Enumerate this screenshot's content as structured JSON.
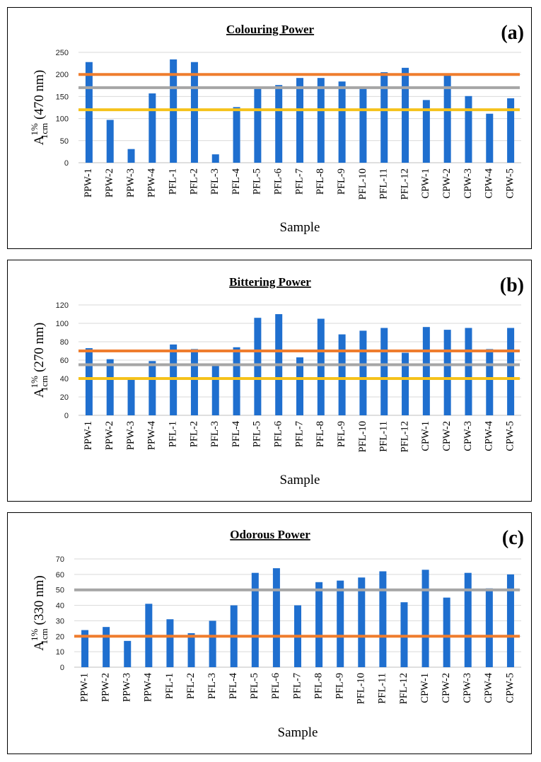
{
  "chart_data": [
    {
      "type": "bar",
      "panel_label": "(a)",
      "title": "Colouring Power",
      "xlabel": "Sample",
      "ylabel": {
        "base": "A",
        "sup": "1%",
        "sub": "1cm",
        "rest": " (470 nm)"
      },
      "ylim": [
        0,
        250
      ],
      "yticks": [
        0,
        50,
        100,
        150,
        200,
        250
      ],
      "grid": true,
      "categories": [
        "PPW-1",
        "PPW-2",
        "PPW-3",
        "PPW-4",
        "PFL-1",
        "PFL-2",
        "PFL-3",
        "PFL-4",
        "PFL-5",
        "PFL-6",
        "PFL-7",
        "PFL-8",
        "PFL-9",
        "PFL-10",
        "PFL-11",
        "PFL-12",
        "CPW-1",
        "CPW-2",
        "CPW-3",
        "CPW-4",
        "CPW-5"
      ],
      "values": [
        228,
        97,
        31,
        157,
        234,
        228,
        19,
        126,
        168,
        176,
        192,
        192,
        184,
        168,
        205,
        215,
        142,
        198,
        151,
        111,
        146
      ],
      "bar_color": "#1f6fcf",
      "reference_lines": [
        {
          "value": 200,
          "color": "#ef7d2e"
        },
        {
          "value": 170,
          "color": "#a6a6a6"
        },
        {
          "value": 120,
          "color": "#f5c21b"
        }
      ]
    },
    {
      "type": "bar",
      "panel_label": "(b)",
      "title": "Bittering Power",
      "xlabel": "Sample",
      "ylabel": {
        "base": "A",
        "sup": "1%",
        "sub": "1cm",
        "rest": " (270 nm)"
      },
      "ylim": [
        0,
        120
      ],
      "yticks": [
        0,
        20,
        40,
        60,
        80,
        100,
        120
      ],
      "grid": true,
      "categories": [
        "PPW-1",
        "PPW-2",
        "PPW-3",
        "PPW-4",
        "PFL-1",
        "PFL-2",
        "PFL-3",
        "PFL-4",
        "PFL-5",
        "PFL-6",
        "PFL-7",
        "PFL-8",
        "PFL-9",
        "PFL-10",
        "PFL-11",
        "PFL-12",
        "CPW-1",
        "CPW-2",
        "CPW-3",
        "CPW-4",
        "CPW-5"
      ],
      "values": [
        73,
        61,
        39,
        59,
        77,
        72,
        54,
        74,
        106,
        110,
        63,
        105,
        88,
        92,
        95,
        68,
        96,
        93,
        95,
        72,
        95
      ],
      "bar_color": "#1f6fcf",
      "reference_lines": [
        {
          "value": 70,
          "color": "#ef7d2e"
        },
        {
          "value": 55,
          "color": "#a6a6a6"
        },
        {
          "value": 40,
          "color": "#f5c21b"
        }
      ]
    },
    {
      "type": "bar",
      "panel_label": "(c)",
      "title": "Odorous Power",
      "xlabel": "Sample",
      "ylabel": {
        "base": "A",
        "sup": "1%",
        "sub": "1cm",
        "rest": " (330 nm)"
      },
      "ylim": [
        0,
        70
      ],
      "yticks": [
        0,
        10,
        20,
        30,
        40,
        50,
        60,
        70
      ],
      "grid": true,
      "categories": [
        "PPW-1",
        "PPW-2",
        "PPW-3",
        "PPW-4",
        "PFL-1",
        "PFL-2",
        "PFL-3",
        "PFL-4",
        "PFL-5",
        "PFL-6",
        "PFL-7",
        "PFL-8",
        "PFL-9",
        "PFL-10",
        "PFL-11",
        "PFL-12",
        "CPW-1",
        "CPW-2",
        "CPW-3",
        "CPW-4",
        "CPW-5"
      ],
      "values": [
        24,
        26,
        17,
        41,
        31,
        22,
        30,
        40,
        61,
        64,
        40,
        55,
        56,
        58,
        62,
        42,
        63,
        45,
        61,
        51,
        60
      ],
      "bar_color": "#1f6fcf",
      "reference_lines": [
        {
          "value": 50,
          "color": "#a6a6a6"
        },
        {
          "value": 20,
          "color": "#ef7d2e"
        }
      ]
    }
  ]
}
